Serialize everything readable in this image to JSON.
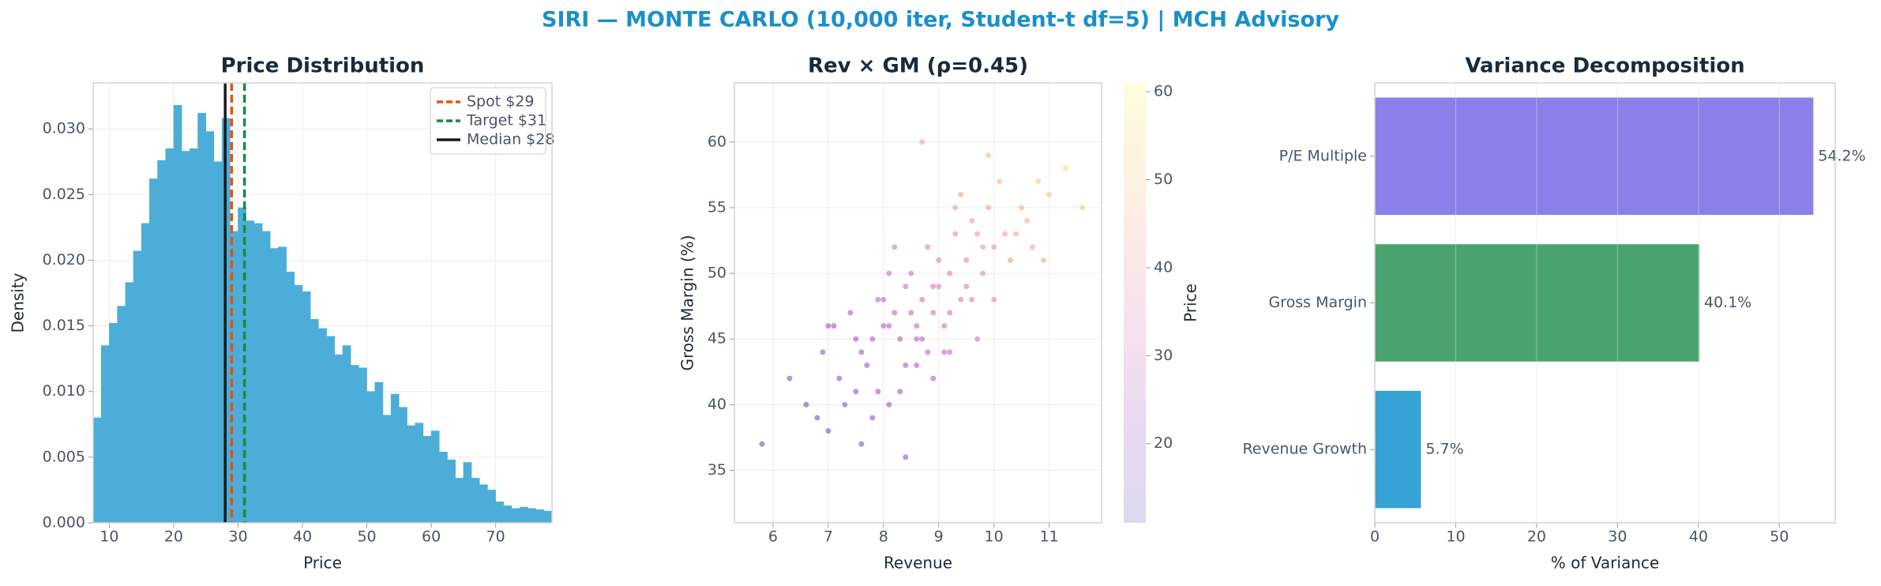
{
  "title": "SIRI — MONTE CARLO (10,000 iter, Student-t df=5) | MCH Advisory",
  "chart_data": [
    {
      "type": "histogram",
      "title": "Price Distribution",
      "x_label": "Price",
      "y_label": "Density",
      "bins": [
        7.5,
        8.75,
        10,
        11.25,
        12.5,
        13.75,
        15,
        16.25,
        17.5,
        18.75,
        20,
        21.25,
        22.5,
        23.75,
        25,
        26.25,
        27.5,
        28.75,
        30,
        31.25,
        32.5,
        33.75,
        35,
        36.25,
        37.5,
        38.75,
        40,
        41.25,
        42.5,
        43.75,
        45,
        46.25,
        47.5,
        48.75,
        50,
        51.25,
        52.5,
        53.75,
        55,
        56.25,
        57.5,
        58.75,
        60,
        61.25,
        62.5,
        63.75,
        65,
        66.25,
        67.5,
        68.75,
        70,
        71.25,
        72.5,
        73.75,
        75,
        76.25,
        77.5,
        78.75
      ],
      "values": [
        0.008,
        0.0135,
        0.0152,
        0.0165,
        0.0183,
        0.0207,
        0.0228,
        0.0262,
        0.0276,
        0.0285,
        0.0318,
        0.0283,
        0.0285,
        0.0312,
        0.0298,
        0.0275,
        0.0308,
        0.0222,
        0.024,
        0.023,
        0.0228,
        0.0222,
        0.0209,
        0.021,
        0.0191,
        0.0181,
        0.0176,
        0.0155,
        0.0148,
        0.0142,
        0.0128,
        0.0135,
        0.012,
        0.0118,
        0.01,
        0.0107,
        0.0082,
        0.0098,
        0.0088,
        0.0074,
        0.0076,
        0.0066,
        0.007,
        0.0054,
        0.0048,
        0.0034,
        0.0046,
        0.0034,
        0.0029,
        0.0025,
        0.0016,
        0.0013,
        0.0011,
        0.0012,
        0.0011,
        0.001,
        0.0009
      ],
      "color": "#4badd8",
      "xlim": [
        7.5,
        78.75
      ],
      "ylim": [
        0,
        0.0335
      ],
      "xticks": [
        10,
        20,
        30,
        40,
        50,
        60,
        70
      ],
      "yticks": [
        {
          "value": 0,
          "label": "0.000"
        },
        {
          "value": 0.005,
          "label": "0.005"
        },
        {
          "value": 0.01,
          "label": "0.010"
        },
        {
          "value": 0.015,
          "label": "0.015"
        },
        {
          "value": 0.02,
          "label": "0.020"
        },
        {
          "value": 0.025,
          "label": "0.025"
        },
        {
          "value": 0.03,
          "label": "0.030"
        }
      ],
      "grid": true,
      "legend": "upper right",
      "vlines": [
        {
          "name": "Spot $29",
          "value": 29,
          "color": "#e5530f",
          "style": "dashed"
        },
        {
          "name": "Target $31",
          "value": 31,
          "color": "#1a8a3e",
          "style": "dashed"
        },
        {
          "name": "Median $28",
          "value": 28,
          "color": "#1a1a1a",
          "style": "solid"
        }
      ]
    },
    {
      "type": "scatter",
      "title": "Rev × GM (ρ=0.45)",
      "x_label": "Revenue",
      "y_label": "Gross Margin (%)",
      "x": [
        8.1,
        8.7,
        9.2,
        7.6,
        8.4,
        9.8,
        10.2,
        7.9,
        8.9,
        9.5,
        8.3,
        7.2,
        9.0,
        10.5,
        8.6,
        7.8,
        9.3,
        8.0,
        10.0,
        8.8,
        7.5,
        9.6,
        8.2,
        9.1,
        10.8,
        7.0,
        8.5,
        9.4,
        7.7,
        10.3,
        8.9,
        9.9,
        6.6,
        8.4,
        9.2,
        11.0,
        7.4,
        8.7,
        9.7,
        8.1,
        10.6,
        7.9,
        9.0,
        8.3,
        6.9,
        9.5,
        10.1,
        8.6,
        7.3,
        9.8,
        11.3,
        8.0,
        8.8,
        9.3,
        7.6,
        10.4,
        6.3,
        8.5,
        9.6,
        7.1,
        9.1,
        10.9,
        8.2,
        7.8,
        9.4,
        8.9,
        10.0,
        6.8,
        8.6,
        9.9,
        5.8,
        11.6,
        7.5,
        9.2,
        8.4,
        10.7,
        7.0,
        9.7,
        8.1,
        8.7
      ],
      "y": [
        46,
        48,
        50,
        44,
        43,
        52,
        53,
        41,
        47,
        51,
        45,
        42,
        49,
        55,
        46,
        39,
        53,
        48,
        52,
        44,
        45,
        54,
        47,
        46,
        57,
        38,
        50,
        48,
        43,
        51,
        42,
        55,
        40,
        49,
        44,
        56,
        47,
        45,
        53,
        50,
        54,
        48,
        51,
        41,
        44,
        49,
        57,
        43,
        40,
        50,
        58,
        46,
        52,
        55,
        37,
        53,
        42,
        47,
        48,
        46,
        44,
        51,
        52,
        45,
        56,
        49,
        48,
        39,
        45,
        59,
        37,
        55,
        41,
        47,
        36,
        52,
        46,
        45,
        40,
        60
      ],
      "color_values": [
        26,
        31,
        36,
        22,
        24,
        41,
        43,
        20,
        31,
        38,
        26,
        18,
        34,
        47,
        29,
        17,
        39,
        28,
        41,
        27,
        22,
        42,
        28,
        31,
        51,
        13,
        32,
        34,
        21,
        42,
        25,
        44,
        13,
        31,
        29,
        50,
        24,
        28,
        41,
        31,
        46,
        28,
        36,
        22,
        19,
        36,
        47,
        25,
        16,
        38,
        54,
        26,
        36,
        42,
        14,
        44,
        14,
        29,
        35,
        22,
        29,
        44,
        33,
        24,
        43,
        33,
        37,
        13,
        27,
        49,
        12,
        52,
        18,
        32,
        17,
        45,
        21,
        32,
        20,
        44
      ],
      "colormap": "plasma",
      "clim": [
        11,
        61
      ],
      "cticks": [
        20,
        30,
        40,
        50,
        60
      ],
      "colorbar_label": "Price",
      "xlim": [
        5.3,
        11.95
      ],
      "ylim": [
        31,
        64.5
      ],
      "xticks": [
        6,
        7,
        8,
        9,
        10,
        11
      ],
      "yticks": [
        35,
        40,
        45,
        50,
        55,
        60
      ],
      "grid": true
    },
    {
      "type": "barh",
      "title": "Variance Decomposition",
      "x_label": "% of Variance",
      "categories": [
        "Revenue Growth",
        "Gross Margin",
        "P/E Multiple"
      ],
      "values": [
        5.7,
        40.1,
        54.2
      ],
      "value_labels": [
        "5.7%",
        "40.1%",
        "54.2%"
      ],
      "colors": [
        "#35a3d4",
        "#4aa36e",
        "#8b7fea"
      ],
      "xlim": [
        0,
        56.9
      ],
      "xticks": [
        0,
        10,
        20,
        30,
        40,
        50
      ],
      "grid": true
    }
  ]
}
